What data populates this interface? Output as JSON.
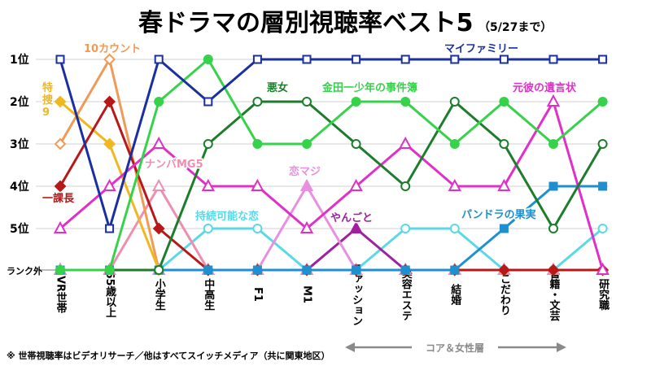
{
  "chart_data": {
    "type": "line",
    "title": "春ドラマの層別視聴率ベスト5",
    "subtitle": "（5/27まで）",
    "categories": [
      "VR世帯",
      "65歳以上",
      "小学生",
      "中高生",
      "F1",
      "M1",
      "ファッション",
      "美容エステ",
      "結婚",
      "こだわり",
      "書籍・文芸",
      "研究職"
    ],
    "y_ticks": [
      "1位",
      "2位",
      "3位",
      "4位",
      "5位",
      "ランク外"
    ],
    "ylim": [
      1,
      6
    ],
    "y_note": "6 = ランク外",
    "footnote": "※ 世帯視聴率はビデオリサーチ／他はすべてスイッチメディア（共に関東地区）",
    "core_label": "コア＆女性層",
    "series": [
      {
        "name": "マイファミリー",
        "color": "#1a2fa0",
        "marker": "square-open",
        "values": [
          1,
          5,
          1,
          2,
          1,
          1,
          1,
          1,
          1,
          1,
          1,
          1
        ]
      },
      {
        "name": "10カウント",
        "color": "#f09a56",
        "marker": "diamond-open",
        "values": [
          3,
          1,
          6,
          6,
          6,
          6,
          6,
          6,
          6,
          6,
          6,
          6
        ]
      },
      {
        "name": "特捜9",
        "color": "#f0b820",
        "marker": "diamond",
        "values": [
          2,
          3,
          6,
          6,
          6,
          6,
          6,
          6,
          6,
          6,
          6,
          6
        ]
      },
      {
        "name": "一課長",
        "color": "#b81818",
        "marker": "diamond",
        "values": [
          4,
          2,
          5,
          6,
          6,
          6,
          6,
          6,
          6,
          6,
          6,
          6
        ]
      },
      {
        "name": "ナンバMG5",
        "color": "#ee8fb0",
        "marker": "triangle-open",
        "values": [
          6,
          6,
          4,
          6,
          6,
          6,
          6,
          6,
          6,
          6,
          6,
          6
        ]
      },
      {
        "name": "悪女",
        "color": "#1d7d2c",
        "marker": "circle-open",
        "values": [
          6,
          6,
          6,
          3,
          2,
          2,
          3,
          4,
          2,
          3,
          5,
          3
        ]
      },
      {
        "name": "金田一少年の事件簿",
        "color": "#36d24a",
        "marker": "circle",
        "values": [
          6,
          6,
          2,
          1,
          3,
          3,
          2,
          2,
          3,
          2,
          3,
          2
        ]
      },
      {
        "name": "元彼の遺言状",
        "color": "#e030c8",
        "marker": "triangle-open",
        "values": [
          5,
          4,
          3,
          4,
          4,
          5,
          4,
          3,
          4,
          4,
          2,
          6
        ]
      },
      {
        "name": "恋マジ",
        "color": "#e890e0",
        "marker": "triangle",
        "values": [
          6,
          6,
          6,
          6,
          6,
          4,
          6,
          6,
          6,
          6,
          6,
          6
        ]
      },
      {
        "name": "持続可能な恋",
        "color": "#5ad8e8",
        "marker": "circle-open",
        "values": [
          6,
          6,
          6,
          5,
          5,
          6,
          6,
          5,
          5,
          6,
          6,
          5
        ]
      },
      {
        "name": "やんごと",
        "color": "#a020a0",
        "marker": "triangle",
        "values": [
          6,
          6,
          6,
          6,
          6,
          6,
          5,
          6,
          6,
          6,
          6,
          6
        ]
      },
      {
        "name": "パンドラの果実",
        "color": "#1e90d0",
        "marker": "square",
        "values": [
          6,
          6,
          6,
          6,
          6,
          6,
          6,
          6,
          6,
          5,
          4,
          4
        ]
      }
    ]
  }
}
